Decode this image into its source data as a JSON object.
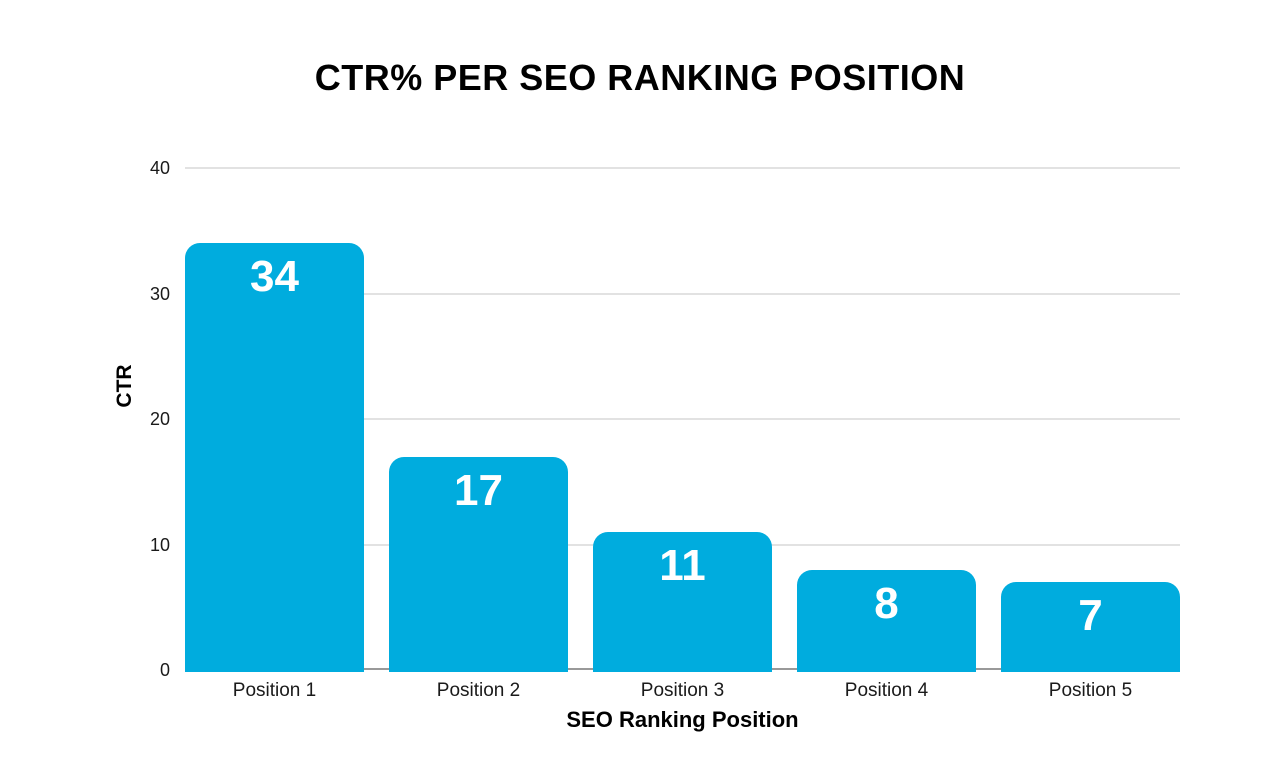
{
  "chart_data": {
    "type": "bar",
    "title": "CTR% PER SEO RANKING POSITION",
    "xlabel": "SEO Ranking Position",
    "ylabel": "CTR",
    "categories": [
      "Position 1",
      "Position 2",
      "Position 3",
      "Position 4",
      "Position 5"
    ],
    "values": [
      34,
      17,
      11,
      8,
      7
    ],
    "bar_labels": [
      "34",
      "17",
      "11",
      "8",
      "7"
    ],
    "ylim": [
      0,
      40
    ],
    "yticks": [
      0,
      10,
      20,
      30,
      40
    ],
    "grid": true,
    "legend": false,
    "colors": {
      "bar": "#00acde",
      "bar_label": "#ffffff",
      "gridline": "#e2e2e2",
      "axis_line": "#999999",
      "tick_text": "#1a1a1a",
      "title_text": "#000000",
      "background": "#ffffff"
    }
  }
}
